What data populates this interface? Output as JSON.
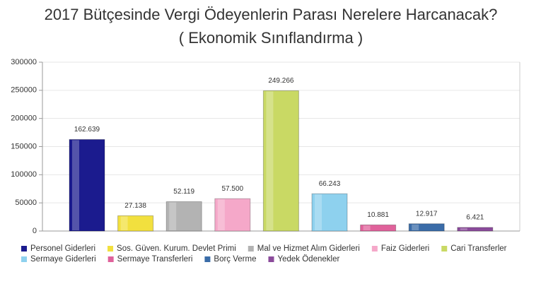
{
  "chart_data": {
    "type": "bar",
    "title": "2017 Bütçesinde Vergi Ödeyenlerin Parası Nerelere Harcanacak?",
    "subtitle": "( Ekonomik Sınıflandırma )",
    "ylim": [
      0,
      300000
    ],
    "yticks": [
      0,
      50000,
      100000,
      150000,
      200000,
      250000,
      300000
    ],
    "grid": true,
    "legend": "bottom",
    "series": [
      {
        "name": "Personel Giderleri",
        "color": "#1b1b8e",
        "values": [
          162639
        ],
        "value_labels": [
          "162.639"
        ]
      },
      {
        "name": "Sos. Güven. Kurum. Devlet Primi",
        "color": "#f2e03e",
        "values": [
          27138
        ],
        "value_labels": [
          "27.138"
        ]
      },
      {
        "name": "Mal ve Hizmet Alım Giderleri",
        "color": "#b3b3b3",
        "values": [
          52119
        ],
        "value_labels": [
          "52.119"
        ]
      },
      {
        "name": "Faiz Giderleri",
        "color": "#f5a8c9",
        "values": [
          57500
        ],
        "value_labels": [
          "57.500"
        ]
      },
      {
        "name": "Cari Transferler",
        "color": "#c9d964",
        "values": [
          249266
        ],
        "value_labels": [
          "249.266"
        ]
      },
      {
        "name": "Sermaye Giderleri",
        "color": "#8ed1ee",
        "values": [
          66243
        ],
        "value_labels": [
          "66.243"
        ]
      },
      {
        "name": "Sermaye Transferleri",
        "color": "#e0629b",
        "values": [
          10881
        ],
        "value_labels": [
          "10.881"
        ]
      },
      {
        "name": "Borç Verme",
        "color": "#3a6ca8",
        "values": [
          12917
        ],
        "value_labels": [
          "12.917"
        ]
      },
      {
        "name": "Yedek Ödenekler",
        "color": "#8b4b9b",
        "values": [
          6421
        ],
        "value_labels": [
          "6.421"
        ]
      }
    ]
  }
}
